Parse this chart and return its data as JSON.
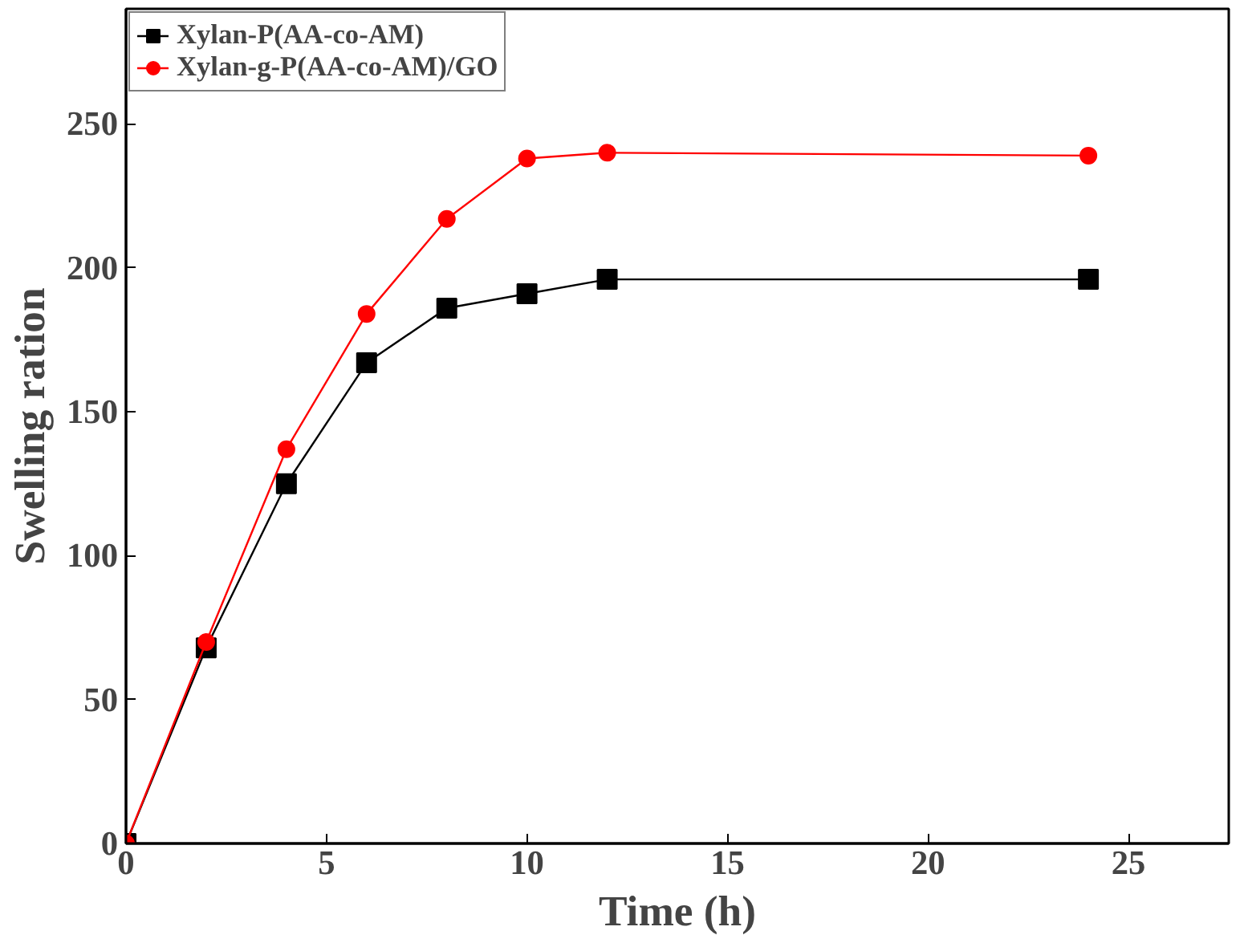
{
  "chart_data": {
    "type": "line",
    "xlabel": "Time (h)",
    "ylabel": "Swelling ration",
    "xlim": [
      0,
      27.5
    ],
    "ylim": [
      0,
      290
    ],
    "xticks": [
      0,
      5,
      10,
      15,
      20,
      25
    ],
    "yticks": [
      0,
      50,
      100,
      150,
      200,
      250
    ],
    "grid": false,
    "legend": "top left",
    "line_style": "solid",
    "series": [
      {
        "name": "Xylan-P(AA-co-AM)",
        "color": "#000000",
        "marker": "square",
        "x": [
          0,
          2,
          4,
          6,
          8,
          10,
          12,
          24
        ],
        "values": [
          0,
          68,
          125,
          167,
          186,
          191,
          196,
          196
        ]
      },
      {
        "name": "Xylan-g-P(AA-co-AM)/GO",
        "color": "#ff0000",
        "marker": "circle",
        "x": [
          0,
          2,
          4,
          6,
          8,
          10,
          12,
          24
        ],
        "values": [
          0,
          70,
          137,
          184,
          217,
          238,
          240,
          239
        ]
      }
    ]
  }
}
